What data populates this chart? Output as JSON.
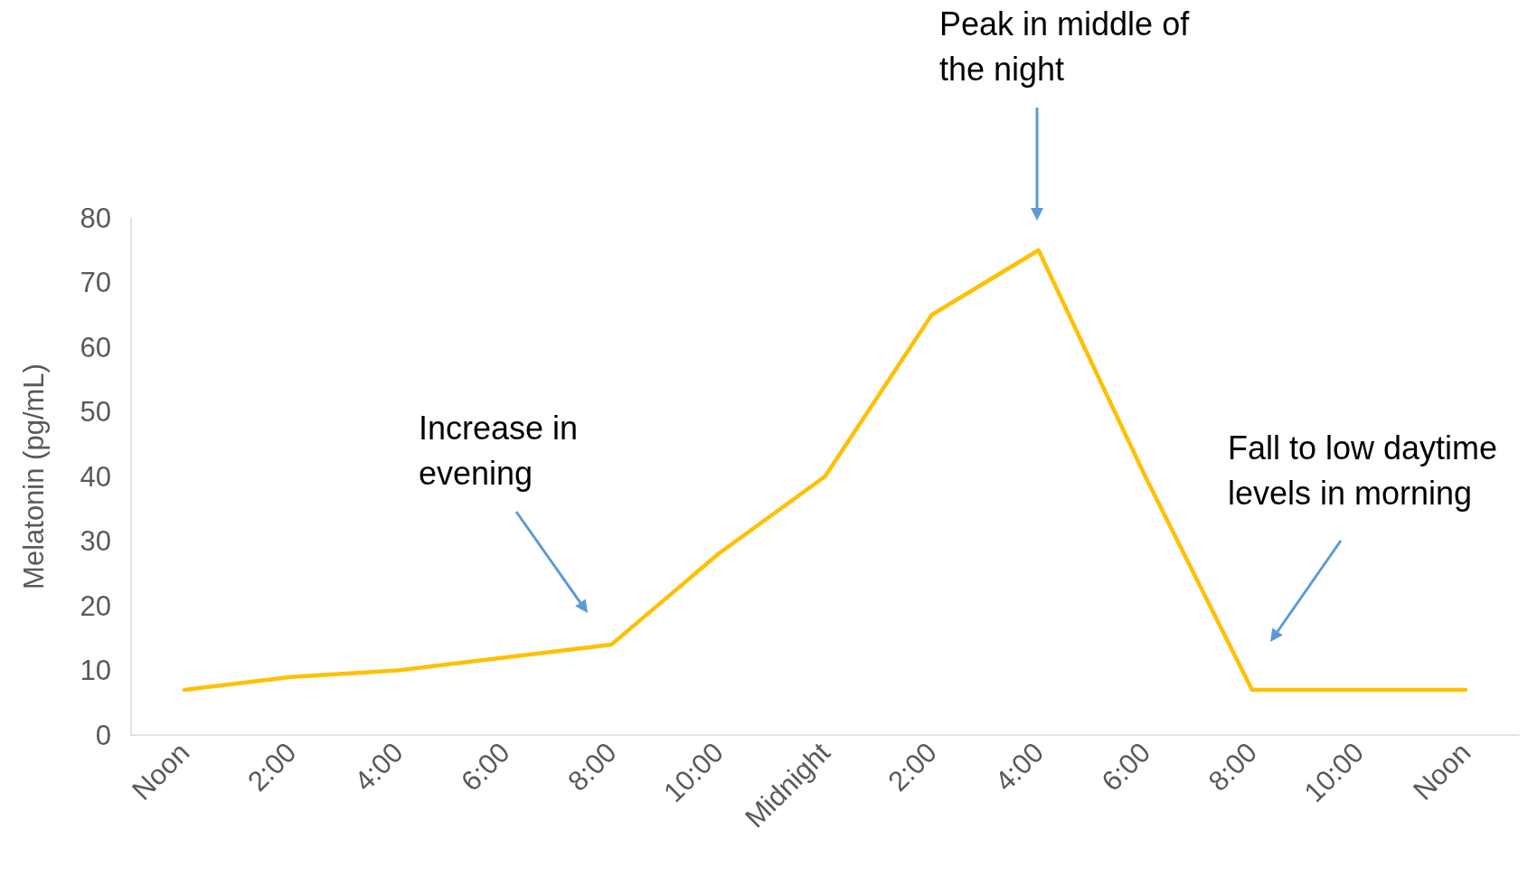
{
  "chart_data": {
    "type": "line",
    "ylabel": "Melatonin (pg/mL)",
    "categories": [
      "Noon",
      "2:00",
      "4:00",
      "6:00",
      "8:00",
      "10:00",
      "Midnight",
      "2:00",
      "4:00",
      "6:00",
      "8:00",
      "10:00",
      "Noon"
    ],
    "series": [
      {
        "color": "#ffc000",
        "values": [
          7,
          9,
          10,
          12,
          14,
          28,
          40,
          65,
          75,
          40,
          7,
          7,
          7
        ]
      }
    ],
    "ylim": [
      0,
      80
    ],
    "yticks": [
      0,
      10,
      20,
      30,
      40,
      50,
      60,
      70,
      80
    ],
    "grid": false,
    "marker": "none",
    "line_style": "solid",
    "annotations": [
      "Increase in evening",
      "Peak in middle of the night",
      "Fall to low daytime levels in morning"
    ]
  }
}
